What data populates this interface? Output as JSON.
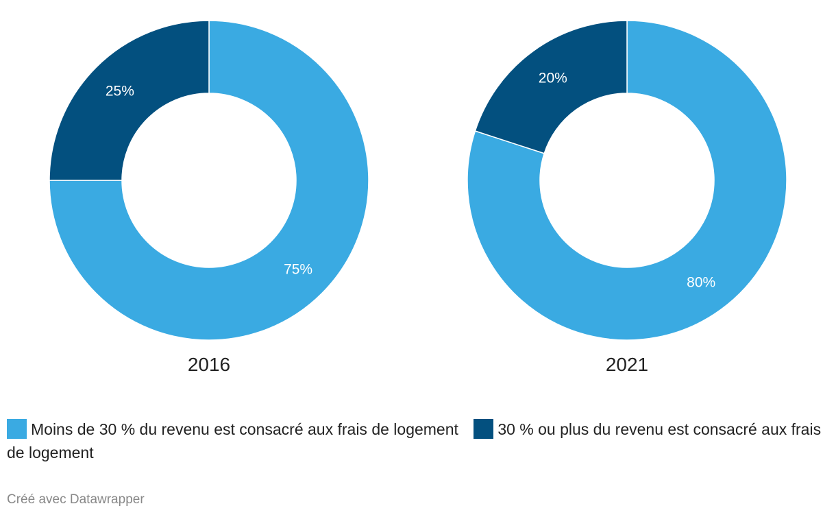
{
  "chart_data": [
    {
      "type": "pie",
      "donut": true,
      "title": "2016",
      "categories": [
        "Moins de 30 % du revenu est consacré aux frais de logement",
        "30 % ou plus du revenu est consacré aux frais de logement"
      ],
      "values": [
        75,
        25
      ],
      "labels": [
        "75%",
        "25%"
      ],
      "colors": [
        "#3aaae2",
        "#03507f"
      ]
    },
    {
      "type": "pie",
      "donut": true,
      "title": "2021",
      "categories": [
        "Moins de 30 % du revenu est consacré aux frais de logement",
        "30 % ou plus du revenu est consacré aux frais de logement"
      ],
      "values": [
        80,
        20
      ],
      "labels": [
        "80%",
        "20%"
      ],
      "colors": [
        "#3aaae2",
        "#03507f"
      ]
    }
  ],
  "legend": {
    "items": [
      {
        "label": "Moins de 30 % du revenu est consacré aux frais de logement",
        "color": "#3aaae2"
      },
      {
        "label": "30 % ou plus du revenu est consacré aux frais de logement",
        "color": "#03507f"
      }
    ],
    "placement": "bottom-left"
  },
  "footer": {
    "credit": "Créé avec Datawrapper"
  }
}
